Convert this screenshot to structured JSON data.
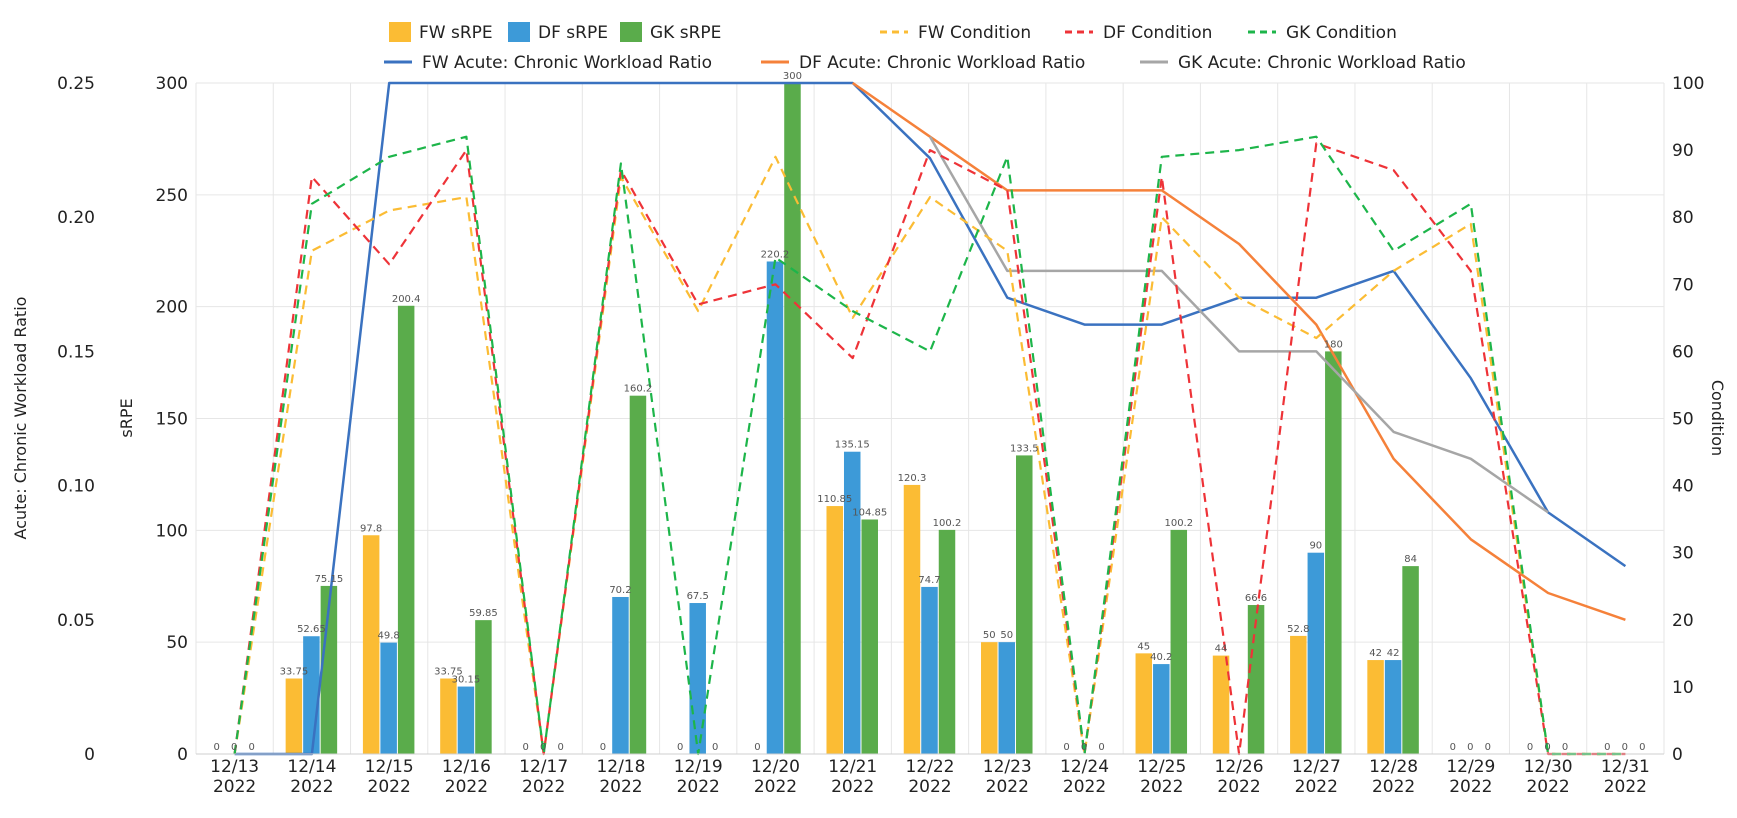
{
  "chart_data": {
    "type": "bar",
    "categories": [
      "12/13\n2022",
      "12/14\n2022",
      "12/15\n2022",
      "12/16\n2022",
      "12/17\n2022",
      "12/18\n2022",
      "12/19\n2022",
      "12/20\n2022",
      "12/21\n2022",
      "12/22\n2022",
      "12/23\n2022",
      "12/24\n2022",
      "12/25\n2022",
      "12/26\n2022",
      "12/27\n2022",
      "12/28\n2022",
      "12/29\n2022",
      "12/30\n2022",
      "12/31\n2022"
    ],
    "axes": {
      "left_acwr": {
        "label": "Acute: Chronic Workload Ratio",
        "range": [
          0,
          0.25
        ],
        "ticks": [
          "0",
          "0.05",
          "0.10",
          "0.15",
          "0.20",
          "0.25"
        ]
      },
      "left_srpe": {
        "label": "sRPE",
        "range": [
          0,
          300
        ],
        "ticks": [
          "0",
          "50",
          "100",
          "150",
          "200",
          "250",
          "300"
        ]
      },
      "right_condition": {
        "label": "Condition",
        "range": [
          0,
          100
        ],
        "ticks": [
          "0",
          "10",
          "20",
          "30",
          "40",
          "50",
          "60",
          "70",
          "80",
          "90",
          "100"
        ]
      }
    },
    "bar_series": [
      {
        "name": "FW sRPE",
        "color": "#fbbc34",
        "axis": "left_srpe",
        "values": [
          0,
          33.75,
          97.8,
          33.75,
          0,
          0,
          0,
          0,
          110.85,
          120.3,
          50,
          0,
          45,
          44,
          52.8,
          42,
          0,
          0,
          0
        ],
        "labels": [
          "0",
          "33.75",
          "97.8",
          "33.75",
          "0",
          "0",
          "0",
          "0",
          "110.85",
          "120.3",
          "50",
          "0",
          "45",
          "44",
          "52.8",
          "42",
          "0",
          "0",
          "0"
        ]
      },
      {
        "name": "DF sRPE",
        "color": "#3d9ad8",
        "axis": "left_srpe",
        "values": [
          0,
          52.65,
          49.8,
          30.15,
          0,
          70.2,
          67.5,
          220.2,
          135.15,
          74.7,
          50,
          0,
          40.2,
          0,
          90,
          42,
          0,
          0,
          0
        ],
        "labels": [
          "0",
          "52.65",
          "49.8",
          "30.15",
          "0",
          "70.2",
          "67.5",
          "220.2",
          "135.15",
          "74.7",
          "50",
          "0",
          "40.2",
          "",
          "90",
          "42",
          "0",
          "0",
          "0"
        ]
      },
      {
        "name": "GK sRPE",
        "color": "#5aac4b",
        "axis": "left_srpe",
        "values": [
          0,
          75.15,
          200.4,
          59.85,
          0,
          160.2,
          0,
          300,
          104.85,
          100.2,
          133.5,
          0,
          100.2,
          66.6,
          180,
          84,
          0,
          0,
          0
        ],
        "labels": [
          "0",
          "75.15",
          "200.4",
          "59.85",
          "0",
          "160.2",
          "0",
          "300",
          "104.85",
          "100.2",
          "133.5",
          "0",
          "100.2",
          "66.6",
          "180",
          "84",
          "0",
          "0",
          "0"
        ]
      }
    ],
    "condition_series": [
      {
        "name": "FW Condition",
        "color": "#fbbc34",
        "axis": "right_condition",
        "dashed": true,
        "values": [
          0,
          75,
          81,
          83,
          0,
          86,
          66,
          89,
          65,
          83,
          75,
          0,
          80,
          68,
          62,
          72,
          79,
          0,
          0
        ]
      },
      {
        "name": "DF Condition",
        "color": "#ee3338",
        "axis": "right_condition",
        "dashed": true,
        "values": [
          0,
          86,
          73,
          90,
          0,
          87,
          67,
          70,
          59,
          90,
          84,
          0,
          86,
          0,
          91,
          87,
          72,
          0,
          0
        ]
      },
      {
        "name": "GK Condition",
        "color": "#1db54a",
        "axis": "right_condition",
        "dashed": true,
        "values": [
          0,
          82,
          89,
          92,
          0,
          88,
          0,
          74,
          66,
          60,
          89,
          0,
          89,
          90,
          92,
          75,
          82,
          0,
          0
        ]
      }
    ],
    "acwr_series": [
      {
        "name": "FW Acute: Chronic Workload Ratio",
        "color": "#3a72c0",
        "axis": "left_acwr",
        "values": [
          0,
          0,
          0.25,
          0.25,
          0.25,
          0.25,
          0.25,
          0.25,
          0.25,
          0.222,
          0.17,
          0.16,
          0.16,
          0.17,
          0.17,
          0.18,
          0.14,
          0.09,
          0.07
        ]
      },
      {
        "name": "DF Acute: Chronic Workload Ratio",
        "color": "#f5813a",
        "axis": "left_acwr",
        "values": [
          null,
          null,
          null,
          null,
          null,
          null,
          null,
          null,
          0.25,
          0.23,
          0.21,
          0.21,
          0.21,
          0.19,
          0.16,
          0.11,
          0.08,
          0.06,
          0.05
        ]
      },
      {
        "name": "GK Acute: Chronic Workload Ratio",
        "color": "#a6a6a6",
        "axis": "left_acwr",
        "values": [
          null,
          null,
          null,
          null,
          null,
          null,
          null,
          null,
          null,
          0.23,
          0.18,
          0.18,
          0.18,
          0.15,
          0.15,
          0.12,
          0.11,
          0.09,
          null
        ]
      }
    ],
    "legend": {
      "row1": [
        "FW sRPE",
        "DF sRPE",
        "GK sRPE",
        "FW Condition",
        "DF Condition",
        "GK Condition"
      ],
      "row2": [
        "FW Acute: Chronic Workload Ratio",
        "DF Acute: Chronic Workload Ratio",
        "GK Acute: Chronic Workload Ratio"
      ],
      "position": "top"
    },
    "grid": true
  }
}
